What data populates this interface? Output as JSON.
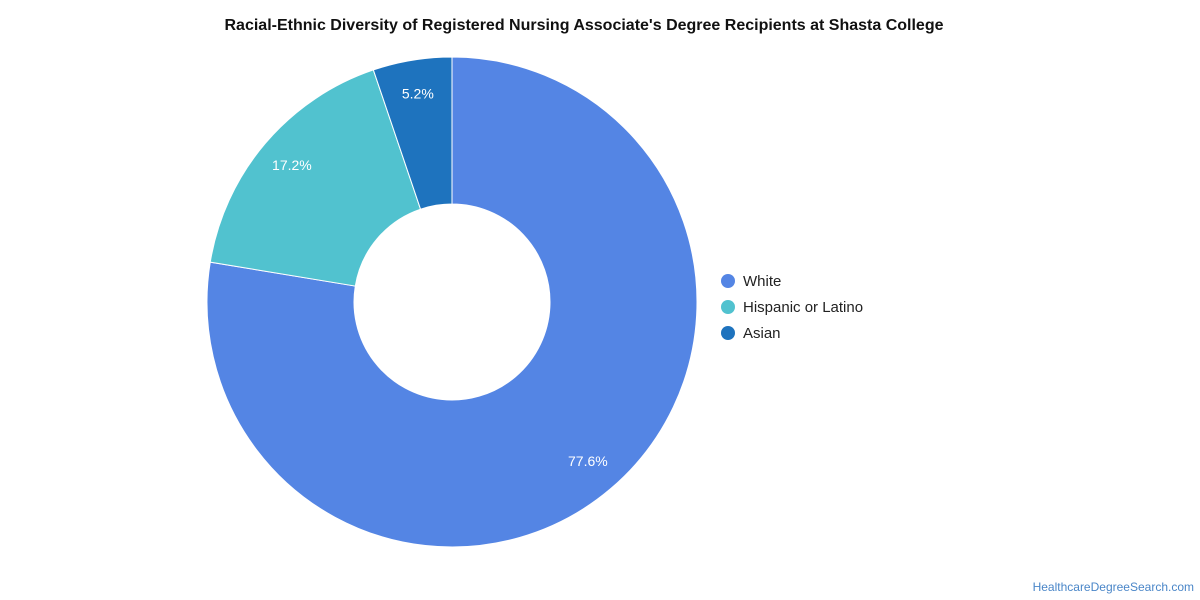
{
  "chart_data": {
    "type": "pie",
    "title": "Racial-Ethnic Diversity of Registered Nursing Associate's Degree Recipients at Shasta College",
    "donut": true,
    "legend_position": "right",
    "slices": [
      {
        "name": "White",
        "value": 77.6,
        "label": "77.6%",
        "color": "#5485e4"
      },
      {
        "name": "Hispanic or Latino",
        "value": 17.2,
        "label": "17.2%",
        "color": "#51c2cf"
      },
      {
        "name": "Asian",
        "value": 5.2,
        "label": "5.2%",
        "color": "#1e73be"
      }
    ]
  },
  "footer": {
    "source": "HealthcareDegreeSearch.com"
  }
}
